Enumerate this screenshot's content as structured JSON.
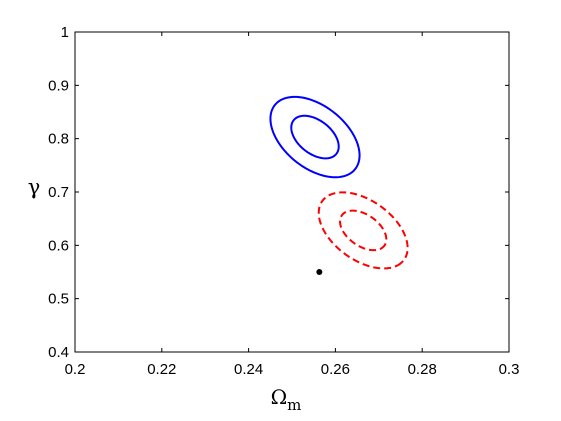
{
  "chart_data": {
    "type": "scatter",
    "title": "",
    "xlabel": "Ω",
    "xlabel_sub": "m",
    "ylabel": "γ",
    "xlim": [
      0.2,
      0.3
    ],
    "ylim": [
      0.4,
      1.0
    ],
    "x_ticks": [
      "0.2",
      "0.22",
      "0.24",
      "0.26",
      "0.28",
      "0.3"
    ],
    "y_ticks": [
      "0.4",
      "0.5",
      "0.6",
      "0.7",
      "0.8",
      "0.9",
      "1"
    ],
    "grid": false,
    "series": [
      {
        "style": "solid",
        "color": "#0000ff",
        "contours": [
          {
            "level": "inner",
            "center": [
              0.2553,
              0.803
            ],
            "semi_major": 0.074,
            "semi_minor": 0.044,
            "tilt_deg": -57
          },
          {
            "level": "outer",
            "center": [
              0.2553,
              0.803
            ],
            "semi_major": 0.14,
            "semi_minor": 0.082,
            "tilt_deg": -57
          }
        ]
      },
      {
        "style": "dashed",
        "color": "#ff0000",
        "contours": [
          {
            "level": "inner",
            "center": [
              0.2664,
              0.628
            ],
            "semi_major": 0.07,
            "semi_minor": 0.042,
            "tilt_deg": -54
          },
          {
            "level": "outer",
            "center": [
              0.2664,
              0.628
            ],
            "semi_major": 0.135,
            "semi_minor": 0.08,
            "tilt_deg": -54
          }
        ]
      }
    ],
    "points": [
      {
        "x": 0.2563,
        "y": 0.55,
        "color": "#000000"
      }
    ]
  }
}
